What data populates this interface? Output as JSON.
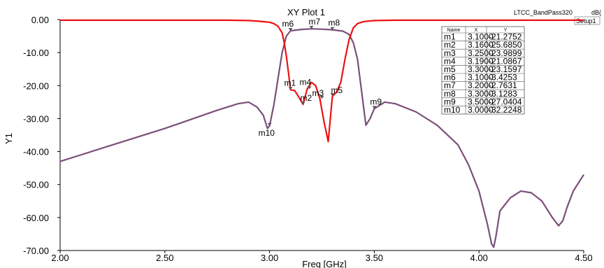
{
  "chart_data": {
    "type": "line",
    "title": "XY Plot 1",
    "project_label": "LTCC_BandPass320",
    "legend": {
      "unit": "dB(",
      "setup": "Setup1"
    },
    "xlabel": "Freq [GHz]",
    "ylabel": "Y1",
    "xlim": [
      2.0,
      4.5
    ],
    "ylim": [
      -70,
      0
    ],
    "x_ticks": [
      "2.00",
      "2.50",
      "3.00",
      "3.50",
      "4.00",
      "4.50"
    ],
    "y_ticks": [
      "0.00",
      "-10.00",
      "-20.00",
      "-30.00",
      "-40.00",
      "-50.00",
      "-60.00",
      "-70.00"
    ],
    "grid": false,
    "colors": {
      "s21": "#ee1111",
      "s11": "#7b4f7a",
      "table_border": "#555555"
    },
    "series": [
      {
        "x": [
          2.0,
          2.5,
          2.8,
          2.9,
          2.95,
          3.0,
          3.02,
          3.04,
          3.06,
          3.07,
          3.08,
          3.09,
          3.1,
          3.12,
          3.14,
          3.16,
          3.18,
          3.2,
          3.22,
          3.24,
          3.26,
          3.28,
          3.3,
          3.32,
          3.34,
          3.36,
          3.38,
          3.4,
          3.42,
          3.45,
          3.5,
          3.6,
          3.8,
          4.0,
          4.2,
          4.5
        ],
        "values": [
          -0.2,
          -0.2,
          -0.2,
          -0.3,
          -0.5,
          -0.8,
          -1.2,
          -2.0,
          -4.0,
          -7.0,
          -11.0,
          -16.0,
          -21.3,
          -21.5,
          -23.5,
          -25.7,
          -21.0,
          -19.0,
          -20.0,
          -23.9,
          -31.0,
          -37.0,
          -23.2,
          -22.0,
          -19.0,
          -12.0,
          -6.0,
          -2.5,
          -1.2,
          -0.6,
          -0.3,
          -0.2,
          -0.2,
          -0.2,
          -0.2,
          -0.2
        ]
      },
      {
        "x": [
          2.0,
          2.25,
          2.5,
          2.75,
          2.85,
          2.9,
          2.94,
          2.97,
          2.99,
          3.0,
          3.02,
          3.04,
          3.06,
          3.08,
          3.1,
          3.15,
          3.2,
          3.25,
          3.3,
          3.35,
          3.38,
          3.4,
          3.42,
          3.44,
          3.46,
          3.48,
          3.5,
          3.55,
          3.6,
          3.7,
          3.8,
          3.9,
          3.95,
          4.0,
          4.04,
          4.06,
          4.07,
          4.08,
          4.1,
          4.15,
          4.2,
          4.25,
          4.3,
          4.35,
          4.38,
          4.4,
          4.42,
          4.45,
          4.5
        ],
        "values": [
          -43.0,
          -38.0,
          -33.0,
          -27.5,
          -25.5,
          -25.0,
          -26.5,
          -29.0,
          -33.0,
          -32.2,
          -26.0,
          -18.0,
          -10.0,
          -5.0,
          -3.4,
          -3.0,
          -2.8,
          -2.9,
          -3.1,
          -3.5,
          -4.5,
          -7.0,
          -12.0,
          -22.0,
          -32.0,
          -30.0,
          -27.0,
          -25.0,
          -25.5,
          -28.0,
          -32.0,
          -38.0,
          -44.0,
          -52.0,
          -62.0,
          -68.0,
          -69.0,
          -66.0,
          -58.0,
          -54.0,
          -52.0,
          -52.5,
          -55.0,
          -60.0,
          -62.5,
          -61.0,
          -57.0,
          -52.0,
          -47.0
        ]
      }
    ],
    "markers": [
      {
        "name": "m1",
        "x": 3.1,
        "y": -21.2752
      },
      {
        "name": "m2",
        "x": 3.16,
        "y": -25.685
      },
      {
        "name": "m3",
        "x": 3.25,
        "y": -23.9899
      },
      {
        "name": "m4",
        "x": 3.19,
        "y": -21.0867
      },
      {
        "name": "m5",
        "x": 3.3,
        "y": -23.1597
      },
      {
        "name": "m6",
        "x": 3.1,
        "y": -3.4253
      },
      {
        "name": "m7",
        "x": 3.2,
        "y": -2.7631
      },
      {
        "name": "m8",
        "x": 3.3,
        "y": -3.1283
      },
      {
        "name": "m9",
        "x": 3.5,
        "y": -27.0404
      },
      {
        "name": "m10",
        "x": 3.0,
        "y": -32.2248
      }
    ],
    "marker_table": {
      "headers": [
        "Name",
        "X",
        "Y"
      ],
      "rows": [
        [
          "m1",
          "3.1000",
          "-21.2752"
        ],
        [
          "m2",
          "3.1600",
          "-25.6850"
        ],
        [
          "m3",
          "3.2500",
          "-23.9899"
        ],
        [
          "m4",
          "3.1900",
          "-21.0867"
        ],
        [
          "m5",
          "3.3000",
          "-23.1597"
        ],
        [
          "m6",
          "3.1000",
          "-3.4253"
        ],
        [
          "m7",
          "3.2000",
          "-2.7631"
        ],
        [
          "m8",
          "3.3000",
          "-3.1283"
        ],
        [
          "m9",
          "3.5000",
          "-27.0404"
        ],
        [
          "m10",
          "3.0000",
          "-32.2248"
        ]
      ]
    }
  }
}
